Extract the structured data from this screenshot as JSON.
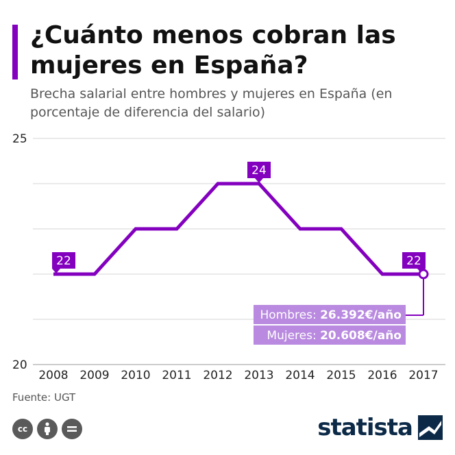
{
  "header": {
    "title": "¿Cuánto menos cobran las mujeres en España?",
    "subtitle": "Brecha salarial entre hombres y mujeres en España (en porcentaje de diferencia del salario)"
  },
  "chart_data": {
    "type": "line",
    "x": [
      "2008",
      "2009",
      "2010",
      "2011",
      "2012",
      "2013",
      "2014",
      "2015",
      "2016",
      "2017"
    ],
    "series": [
      {
        "values": [
          22,
          22,
          23,
          23,
          24,
          24,
          23,
          23,
          22,
          22
        ]
      }
    ],
    "ylim": [
      20,
      25
    ],
    "yticks": [
      "20",
      "25"
    ],
    "grid": true,
    "data_labels": [
      {
        "index": 0,
        "text": "22"
      },
      {
        "index": 5,
        "text": "24"
      },
      {
        "index": 9,
        "text": "22"
      }
    ],
    "annotation": {
      "index": 9,
      "lines": [
        {
          "label": "Hombres:",
          "value": "26.392€/año"
        },
        {
          "label": "Mujeres:",
          "value": "20.608€/año"
        }
      ]
    },
    "colors": {
      "line": "#8300bf",
      "annotation_bg": "#b98ae0",
      "grid": "#d4d4d4"
    }
  },
  "footer": {
    "source": "Fuente: UGT",
    "license_icons": [
      "cc",
      "by",
      "nd"
    ],
    "brand": "statista"
  }
}
